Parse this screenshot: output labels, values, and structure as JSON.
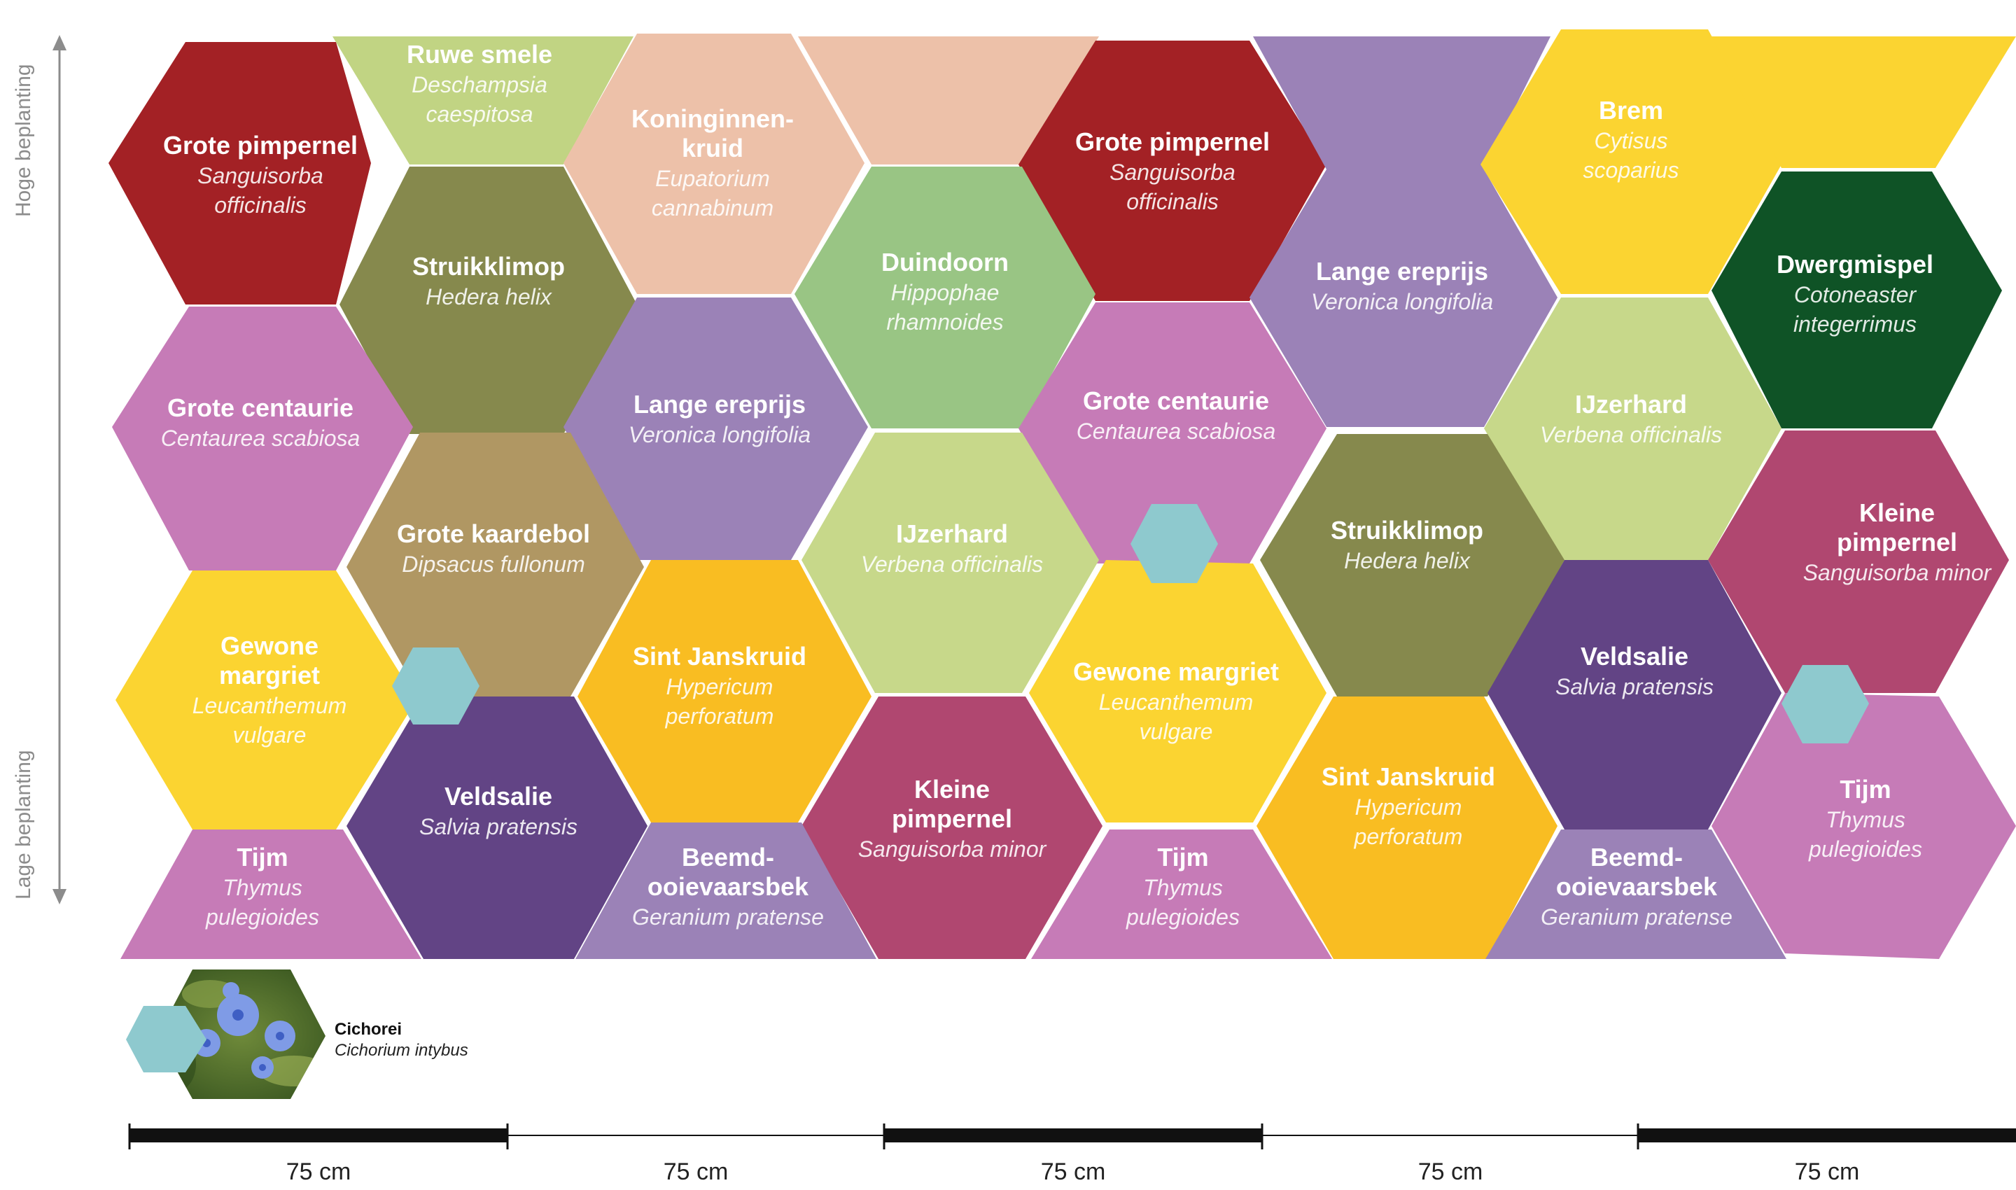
{
  "axis": {
    "top_label": "Hoge beplanting",
    "bottom_label": "Lage beplanting"
  },
  "colors": {
    "red": "#a32125",
    "lightgreen": "#c1d483",
    "peach": "#edc1a9",
    "olive": "#86894d",
    "green": "#99c584",
    "lavender": "#9b82b7",
    "yellow": "#fbd431",
    "darkgreen": "#0f5326",
    "pink": "#c67bb7",
    "tan": "#b09763",
    "purple": "#624485",
    "orange": "#f9bd22",
    "magenta": "#b04770",
    "teal": "#8ec9ce",
    "pale_green": "#c7d88a"
  },
  "plants": [
    {
      "common": [
        "Grote pimpernel"
      ],
      "latin": [
        "Sanguisorba",
        "officinalis"
      ],
      "color": "#a32125"
    },
    {
      "common": [
        "Ruwe smele"
      ],
      "latin": [
        "Deschampsia",
        "caespitosa"
      ],
      "color": "#c1d483"
    },
    {
      "common": [
        "Koninginnen-",
        "kruid"
      ],
      "latin": [
        "Eupatorium",
        "cannabinum"
      ],
      "color": "#edc1a9"
    },
    {
      "common": [],
      "latin": [],
      "color": "#edc1a9"
    },
    {
      "common": [
        "Grote pimpernel"
      ],
      "latin": [
        "Sanguisorba",
        "officinalis"
      ],
      "color": "#a32125"
    },
    {
      "common": [
        "Lange ereprijs"
      ],
      "latin": [
        "Veronica longifolia"
      ],
      "color": "#9b82b7"
    },
    {
      "common": [
        "Brem"
      ],
      "latin": [
        "Cytisus",
        "scoparius"
      ],
      "color": "#fbd431"
    },
    {
      "common": [],
      "latin": [],
      "color": "#fbd431"
    },
    {
      "common": [
        "Struikklimop"
      ],
      "latin": [
        "Hedera helix"
      ],
      "color": "#86894d"
    },
    {
      "common": [
        "Duindoorn"
      ],
      "latin": [
        "Hippophae",
        "rhamnoides"
      ],
      "color": "#99c584"
    },
    {
      "common": [
        "Dwergmispel"
      ],
      "latin": [
        "Cotoneaster",
        "integerrimus"
      ],
      "color": "#0f5326"
    },
    {
      "common": [
        "Grote centaurie"
      ],
      "latin": [
        "Centaurea scabiosa"
      ],
      "color": "#c67bb7"
    },
    {
      "common": [
        "Lange ereprijs"
      ],
      "latin": [
        "Veronica longifolia"
      ],
      "color": "#9b82b7"
    },
    {
      "common": [
        "Grote centaurie"
      ],
      "latin": [
        "Centaurea scabiosa"
      ],
      "color": "#c67bb7"
    },
    {
      "common": [
        "IJzerhard"
      ],
      "latin": [
        "Verbena officinalis"
      ],
      "color": "#c7d88a"
    },
    {
      "common": [
        "Grote kaardebol"
      ],
      "latin": [
        "Dipsacus fullonum"
      ],
      "color": "#b09763"
    },
    {
      "common": [
        "IJzerhard"
      ],
      "latin": [
        "Verbena officinalis"
      ],
      "color": "#c7d88a"
    },
    {
      "common": [
        "Struikklimop"
      ],
      "latin": [
        "Hedera helix"
      ],
      "color": "#86894d"
    },
    {
      "common": [
        "Kleine",
        "pimpernel"
      ],
      "latin": [
        "Sanguisorba minor"
      ],
      "color": "#b04770"
    },
    {
      "common": [
        "Gewone",
        "margriet"
      ],
      "latin": [
        "Leucanthemum",
        "vulgare"
      ],
      "color": "#fbd431"
    },
    {
      "common": [
        "Sint Janskruid"
      ],
      "latin": [
        "Hypericum",
        "perforatum"
      ],
      "color": "#f9bd22"
    },
    {
      "common": [
        "Gewone margriet"
      ],
      "latin": [
        "Leucanthemum",
        "vulgare"
      ],
      "color": "#fbd431"
    },
    {
      "common": [
        "Veldsalie"
      ],
      "latin": [
        "Salvia pratensis"
      ],
      "color": "#624485"
    },
    {
      "common": [
        "Veldsalie"
      ],
      "latin": [
        "Salvia pratensis"
      ],
      "color": "#624485"
    },
    {
      "common": [
        "Kleine",
        "pimpernel"
      ],
      "latin": [
        "Sanguisorba minor"
      ],
      "color": "#b04770"
    },
    {
      "common": [
        "Tijm"
      ],
      "latin": [
        "Thymus",
        "pulegioides"
      ],
      "color": "#c67bb7"
    },
    {
      "common": [
        "Sint Janskruid"
      ],
      "latin": [
        "Hypericum",
        "perforatum"
      ],
      "color": "#f9bd22"
    },
    {
      "common": [
        "Tijm"
      ],
      "latin": [
        "Thymus",
        "pulegioides"
      ],
      "color": "#c67bb7"
    },
    {
      "common": [
        "Beemd-",
        "ooievaarsbek"
      ],
      "latin": [
        "Geranium pratense"
      ],
      "color": "#9b82b7"
    },
    {
      "common": [
        "Tijm"
      ],
      "latin": [
        "Thymus",
        "pulegioides"
      ],
      "color": "#c67bb7"
    },
    {
      "common": [
        "Beemd-",
        "ooievaarsbek"
      ],
      "latin": [
        "Geranium pratense"
      ],
      "color": "#9b82b7"
    }
  ],
  "teal_markers": 4,
  "legend": {
    "common": "Cichorei",
    "latin": "Cichorium intybus",
    "marker_color": "#8ec9ce",
    "photo_icon": "chicory-flower-photo"
  },
  "scale": {
    "segment_label": "75 cm",
    "segments": [
      {
        "label": "75 cm",
        "style": "thick"
      },
      {
        "label": "75 cm",
        "style": "thin"
      },
      {
        "label": "75 cm",
        "style": "thick"
      },
      {
        "label": "75 cm",
        "style": "thin"
      },
      {
        "label": "75 cm",
        "style": "thick"
      }
    ]
  }
}
